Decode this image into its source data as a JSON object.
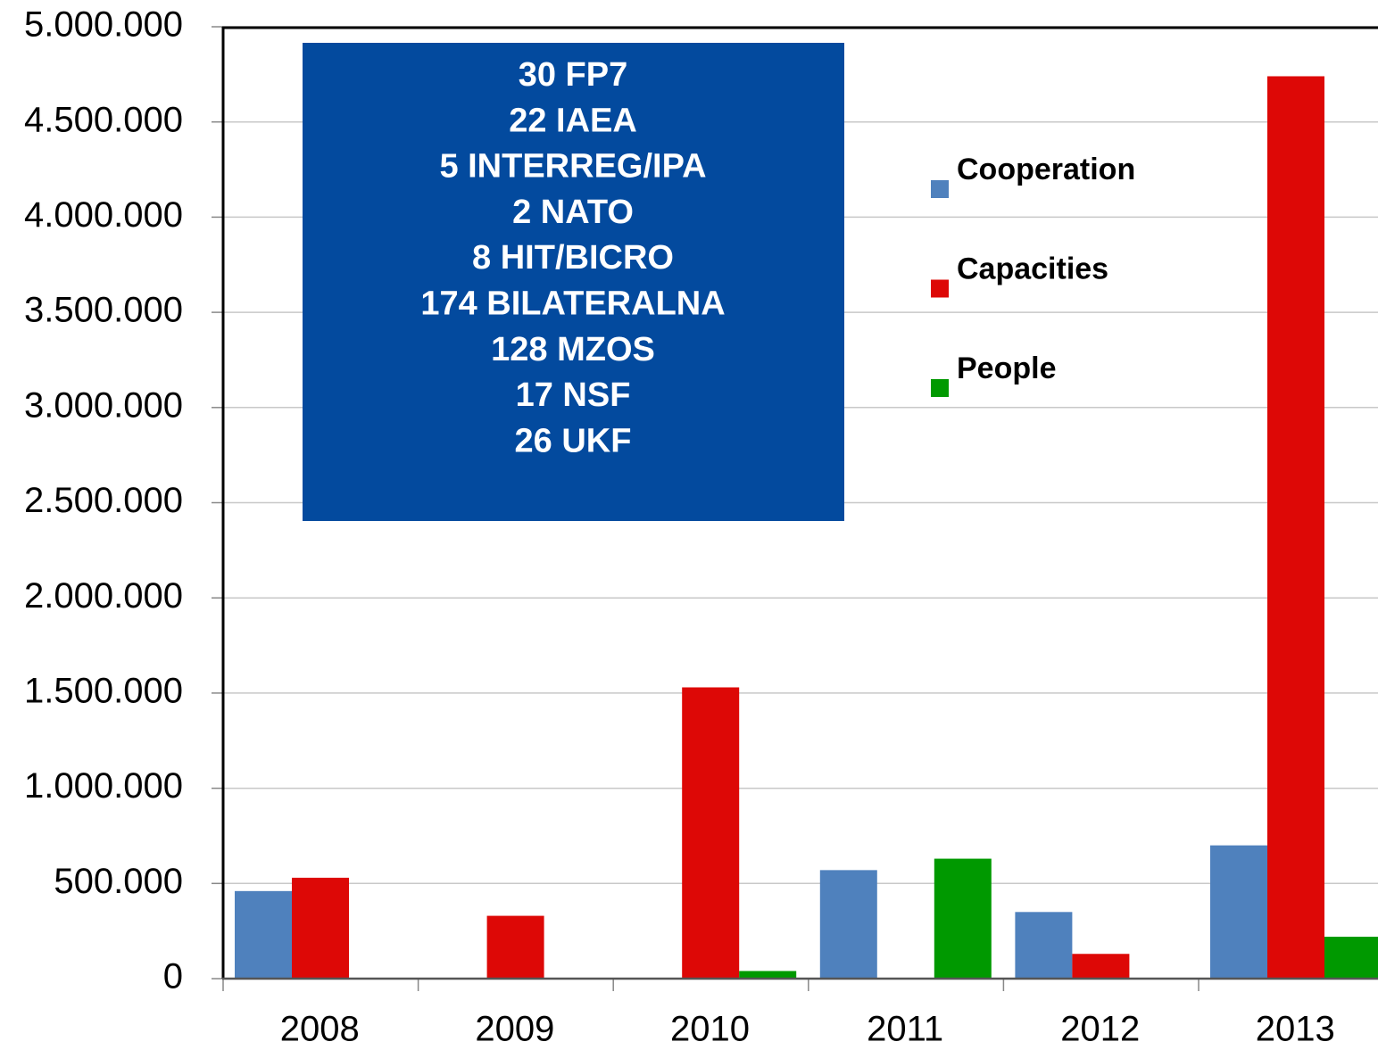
{
  "chart_data": {
    "type": "bar",
    "categories": [
      "2008",
      "2009",
      "2010",
      "2011",
      "2012",
      "2013"
    ],
    "series": [
      {
        "name": "Cooperation",
        "color": "#4f81bd",
        "values": [
          460000,
          0,
          0,
          570000,
          350000,
          700000
        ]
      },
      {
        "name": "Capacities",
        "color": "#dd0806",
        "values": [
          530000,
          330000,
          1530000,
          0,
          130000,
          4740000
        ]
      },
      {
        "name": "People",
        "color": "#009900",
        "values": [
          0,
          0,
          40000,
          630000,
          0,
          220000
        ]
      }
    ],
    "ylim": [
      0,
      5000000
    ],
    "yticks": [
      0,
      {
        "value": 500000,
        "label": "500.000"
      },
      {
        "value": 1000000,
        "label": "1.000.000"
      },
      {
        "value": 1500000,
        "label": "1.500.000"
      },
      {
        "value": 2000000,
        "label": "2.000.000"
      },
      {
        "value": 2500000,
        "label": "2.500.000"
      },
      {
        "value": 3000000,
        "label": "3.000.000"
      },
      {
        "value": 3500000,
        "label": "3.500.000"
      },
      {
        "value": 4000000,
        "label": "4.000.000"
      },
      {
        "value": 4500000,
        "label": "4.500.000"
      },
      {
        "value": 5000000,
        "label": "5.000.000"
      }
    ],
    "grid": true,
    "legend": "right",
    "annotation": {
      "color": "#034a9e",
      "lines": [
        "30 FP7",
        "22 IAEA",
        "5 INTERREG/IPA",
        "2 NATO",
        "8 HIT/BICRO",
        "174 BILATERALNA",
        "128 MZOS",
        "17 NSF",
        "26 UKF"
      ]
    }
  }
}
